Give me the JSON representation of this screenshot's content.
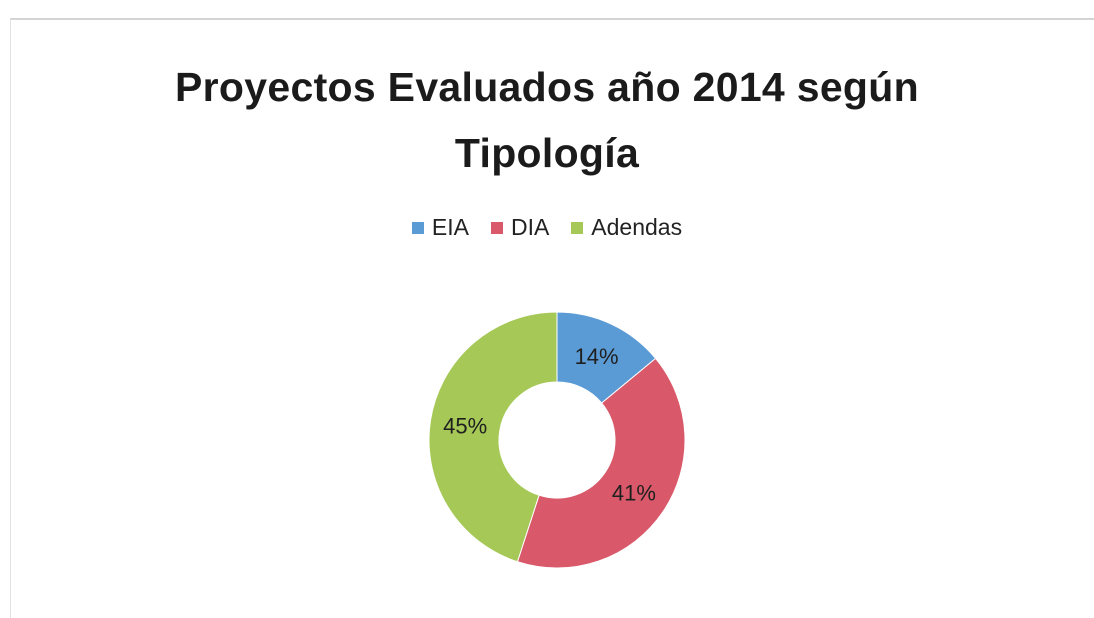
{
  "chart_data": {
    "type": "pie",
    "title_lines": [
      "Proyectos Evaluados año 2014 según",
      "Tipología"
    ],
    "categories": [
      "EIA",
      "DIA",
      "Adendas"
    ],
    "values": [
      14,
      41,
      45
    ],
    "labels": [
      "14%",
      "41%",
      "45%"
    ],
    "colors": [
      "#5b9bd5",
      "#d9596a",
      "#a6c856"
    ],
    "legend_position": "top",
    "style": "donut"
  }
}
